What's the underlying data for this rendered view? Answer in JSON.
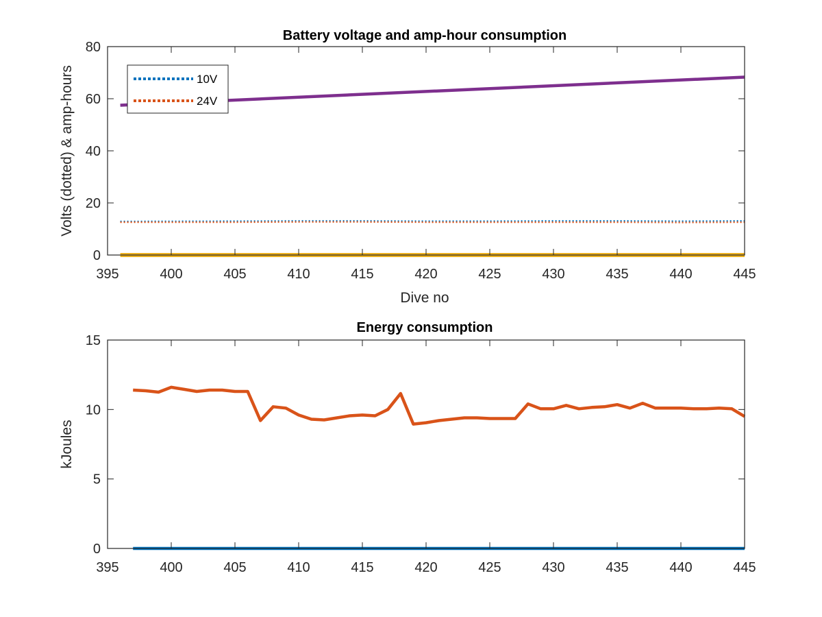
{
  "chart_data": [
    {
      "type": "line",
      "title": "Battery voltage and amp-hour consumption",
      "xlabel": "Dive no",
      "ylabel": "Volts (dotted) & amp-hours",
      "xlim": [
        395,
        445
      ],
      "ylim": [
        0,
        80
      ],
      "xticks": [
        395,
        400,
        405,
        410,
        415,
        420,
        425,
        430,
        435,
        440,
        445
      ],
      "yticks": [
        0,
        20,
        40,
        60,
        80
      ],
      "legend_position": "top-left",
      "series": [
        {
          "name": "10V",
          "style": "dotted",
          "color": "#0072BD",
          "x": [
            396,
            405,
            410,
            415,
            420,
            425,
            430,
            435,
            440,
            445
          ],
          "y": [
            12.9,
            13.0,
            13.1,
            13.1,
            13.0,
            13.0,
            13.1,
            13.1,
            13.0,
            13.1
          ]
        },
        {
          "name": "24V",
          "style": "dotted",
          "color": "#D95319",
          "x": [
            396,
            405,
            410,
            415,
            420,
            425,
            430,
            435,
            440,
            445
          ],
          "y": [
            12.6,
            12.6,
            12.7,
            12.7,
            12.6,
            12.6,
            12.6,
            12.6,
            12.5,
            12.6
          ]
        },
        {
          "style": "solid",
          "color": "#7E2F8E",
          "x": [
            396,
            445
          ],
          "y": [
            57.5,
            68.3
          ]
        },
        {
          "style": "solid",
          "color": "#EDB120",
          "x": [
            396,
            445
          ],
          "y": [
            0,
            0
          ]
        }
      ]
    },
    {
      "type": "line",
      "title": "Energy consumption",
      "xlabel": "",
      "ylabel": "kJoules",
      "xlim": [
        395,
        445
      ],
      "ylim": [
        0,
        15
      ],
      "xticks": [
        395,
        400,
        405,
        410,
        415,
        420,
        425,
        430,
        435,
        440,
        445
      ],
      "yticks": [
        0,
        5,
        10,
        15
      ],
      "series": [
        {
          "style": "solid",
          "color": "#D95319",
          "x": [
            397,
            398,
            399,
            400,
            401,
            402,
            403,
            404,
            405,
            406,
            407,
            408,
            409,
            410,
            411,
            412,
            413,
            414,
            415,
            416,
            417,
            418,
            419,
            420,
            421,
            422,
            423,
            424,
            425,
            426,
            427,
            428,
            429,
            430,
            431,
            432,
            433,
            434,
            435,
            436,
            437,
            438,
            439,
            440,
            441,
            442,
            443,
            444,
            445
          ],
          "y": [
            11.4,
            11.35,
            11.25,
            11.6,
            11.45,
            11.3,
            11.4,
            11.4,
            11.3,
            11.3,
            9.2,
            10.2,
            10.1,
            9.6,
            9.3,
            9.25,
            9.4,
            9.55,
            9.6,
            9.55,
            10.0,
            11.15,
            8.95,
            9.05,
            9.2,
            9.3,
            9.4,
            9.4,
            9.35,
            9.35,
            9.35,
            10.4,
            10.05,
            10.05,
            10.3,
            10.05,
            10.15,
            10.2,
            10.35,
            10.1,
            10.45,
            10.1,
            10.1,
            10.1,
            10.05,
            10.05,
            10.1,
            10.05,
            9.5
          ]
        },
        {
          "style": "solid",
          "color": "#0072BD",
          "x": [
            397,
            445
          ],
          "y": [
            0,
            0
          ]
        }
      ]
    }
  ]
}
